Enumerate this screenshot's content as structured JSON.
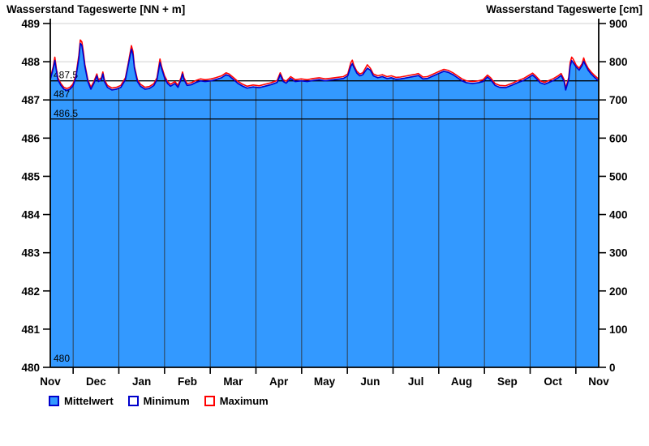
{
  "chart_data": {
    "type": "area",
    "title_left": "Wasserstand Tageswerte [NN + m]",
    "title_right": "Wasserstand Tageswerte [cm]",
    "x_axis": {
      "labels": [
        "Nov",
        "Dec",
        "Jan",
        "Feb",
        "Mar",
        "Apr",
        "May",
        "Jun",
        "Jul",
        "Aug",
        "Sep",
        "Oct",
        "Nov"
      ],
      "range_days": [
        0,
        365
      ],
      "tick_position": "mid-month"
    },
    "y_left": {
      "unit": "NN + m",
      "range": [
        480,
        489
      ],
      "ticks": [
        489,
        488,
        487,
        486,
        485,
        484,
        483,
        482,
        481,
        480
      ]
    },
    "y_right": {
      "unit": "cm",
      "range": [
        0,
        900
      ],
      "ticks": [
        900,
        800,
        700,
        600,
        500,
        400,
        300,
        200,
        100,
        0
      ]
    },
    "reference_lines": [
      {
        "value": 487.5,
        "label": "487.5",
        "line": true
      },
      {
        "value": 487.0,
        "label": "487",
        "line": true
      },
      {
        "value": 486.5,
        "label": "486.5",
        "line": true
      },
      {
        "value": 480.0,
        "label": "480",
        "line": false
      }
    ],
    "series": {
      "days": [
        0,
        1,
        2,
        3,
        4,
        5,
        7,
        9,
        11,
        13,
        15,
        17,
        19,
        20,
        21,
        22,
        23,
        25,
        27,
        29,
        31,
        32,
        34,
        35,
        36,
        38,
        41,
        44,
        47,
        50,
        52,
        54,
        55,
        56,
        58,
        60,
        63,
        66,
        69,
        71,
        73,
        74,
        76,
        78,
        80,
        83,
        85,
        87,
        88,
        89,
        91,
        94,
        97,
        100,
        103,
        107,
        110,
        114,
        117,
        119,
        122,
        125,
        128,
        131,
        135,
        139,
        143,
        147,
        151,
        153,
        155,
        157,
        160,
        163,
        167,
        171,
        175,
        179,
        183,
        187,
        191,
        195,
        198,
        200,
        201,
        202,
        204,
        206,
        208,
        211,
        213,
        215,
        218,
        221,
        224,
        227,
        230,
        233,
        236,
        240,
        243,
        245,
        248,
        251,
        255,
        259,
        262,
        265,
        268,
        271,
        274,
        277,
        281,
        285,
        288,
        291,
        293,
        296,
        299,
        303,
        307,
        311,
        315,
        318,
        321,
        323,
        326,
        329,
        332,
        335,
        338,
        340,
        342,
        343,
        345,
        346,
        347,
        348,
        350,
        352,
        354,
        355,
        356,
        358,
        360,
        362,
        364,
        365
      ],
      "mittelwert": [
        487.55,
        487.7,
        487.85,
        488.05,
        487.8,
        487.55,
        487.4,
        487.3,
        487.27,
        487.3,
        487.38,
        487.6,
        488.1,
        488.5,
        488.45,
        488.2,
        487.9,
        487.5,
        487.3,
        487.45,
        487.65,
        487.5,
        487.55,
        487.7,
        487.5,
        487.35,
        487.28,
        487.3,
        487.35,
        487.55,
        487.95,
        488.35,
        488.2,
        487.85,
        487.5,
        487.38,
        487.3,
        487.32,
        487.4,
        487.55,
        488.0,
        487.85,
        487.6,
        487.45,
        487.38,
        487.45,
        487.35,
        487.55,
        487.7,
        487.55,
        487.4,
        487.42,
        487.48,
        487.52,
        487.5,
        487.52,
        487.55,
        487.6,
        487.68,
        487.65,
        487.55,
        487.45,
        487.38,
        487.33,
        487.36,
        487.34,
        487.38,
        487.42,
        487.48,
        487.68,
        487.5,
        487.46,
        487.58,
        487.5,
        487.52,
        487.5,
        487.53,
        487.55,
        487.52,
        487.54,
        487.56,
        487.58,
        487.65,
        487.9,
        487.97,
        487.88,
        487.72,
        487.65,
        487.68,
        487.85,
        487.8,
        487.65,
        487.6,
        487.63,
        487.58,
        487.6,
        487.56,
        487.57,
        487.59,
        487.62,
        487.64,
        487.66,
        487.57,
        487.58,
        487.65,
        487.72,
        487.77,
        487.74,
        487.68,
        487.6,
        487.52,
        487.47,
        487.45,
        487.47,
        487.5,
        487.62,
        487.55,
        487.4,
        487.35,
        487.34,
        487.4,
        487.47,
        487.53,
        487.6,
        487.67,
        487.6,
        487.47,
        487.43,
        487.48,
        487.53,
        487.6,
        487.66,
        487.5,
        487.28,
        487.55,
        487.9,
        488.05,
        488.0,
        487.88,
        487.8,
        487.92,
        488.03,
        487.95,
        487.8,
        487.7,
        487.62,
        487.55,
        487.52
      ],
      "maximum": [
        487.58,
        487.73,
        487.88,
        488.12,
        487.83,
        487.58,
        487.43,
        487.33,
        487.3,
        487.33,
        487.41,
        487.63,
        488.17,
        488.57,
        488.52,
        488.27,
        487.93,
        487.53,
        487.33,
        487.48,
        487.68,
        487.53,
        487.58,
        487.73,
        487.53,
        487.38,
        487.31,
        487.33,
        487.38,
        487.58,
        487.98,
        488.42,
        488.27,
        487.88,
        487.53,
        487.41,
        487.33,
        487.35,
        487.43,
        487.58,
        488.07,
        487.88,
        487.63,
        487.48,
        487.41,
        487.48,
        487.38,
        487.58,
        487.73,
        487.58,
        487.43,
        487.45,
        487.51,
        487.55,
        487.53,
        487.55,
        487.58,
        487.63,
        487.71,
        487.68,
        487.58,
        487.48,
        487.41,
        487.36,
        487.39,
        487.37,
        487.41,
        487.45,
        487.51,
        487.71,
        487.53,
        487.49,
        487.61,
        487.53,
        487.55,
        487.53,
        487.56,
        487.58,
        487.55,
        487.57,
        487.59,
        487.61,
        487.68,
        487.97,
        488.04,
        487.91,
        487.75,
        487.68,
        487.71,
        487.92,
        487.83,
        487.68,
        487.63,
        487.66,
        487.61,
        487.63,
        487.59,
        487.6,
        487.62,
        487.65,
        487.67,
        487.69,
        487.6,
        487.61,
        487.68,
        487.75,
        487.8,
        487.77,
        487.71,
        487.63,
        487.55,
        487.5,
        487.48,
        487.5,
        487.53,
        487.65,
        487.58,
        487.43,
        487.38,
        487.37,
        487.43,
        487.5,
        487.56,
        487.63,
        487.7,
        487.63,
        487.5,
        487.46,
        487.51,
        487.56,
        487.63,
        487.69,
        487.53,
        487.31,
        487.58,
        487.97,
        488.12,
        488.07,
        487.91,
        487.83,
        487.95,
        488.1,
        487.98,
        487.83,
        487.73,
        487.65,
        487.58,
        487.55
      ],
      "minimum": [
        487.53,
        487.68,
        487.83,
        488.03,
        487.78,
        487.53,
        487.38,
        487.28,
        487.25,
        487.28,
        487.36,
        487.58,
        488.08,
        488.48,
        488.43,
        488.18,
        487.88,
        487.48,
        487.28,
        487.43,
        487.63,
        487.48,
        487.53,
        487.68,
        487.48,
        487.33,
        487.26,
        487.28,
        487.33,
        487.53,
        487.93,
        488.33,
        488.18,
        487.83,
        487.48,
        487.36,
        487.28,
        487.3,
        487.38,
        487.53,
        487.98,
        487.83,
        487.58,
        487.43,
        487.36,
        487.43,
        487.33,
        487.53,
        487.68,
        487.53,
        487.38,
        487.4,
        487.46,
        487.5,
        487.48,
        487.5,
        487.53,
        487.58,
        487.66,
        487.63,
        487.53,
        487.43,
        487.36,
        487.31,
        487.34,
        487.32,
        487.36,
        487.4,
        487.46,
        487.66,
        487.48,
        487.44,
        487.56,
        487.48,
        487.5,
        487.48,
        487.51,
        487.53,
        487.5,
        487.52,
        487.54,
        487.56,
        487.63,
        487.88,
        487.95,
        487.86,
        487.7,
        487.63,
        487.66,
        487.83,
        487.78,
        487.63,
        487.58,
        487.61,
        487.56,
        487.58,
        487.54,
        487.55,
        487.57,
        487.6,
        487.62,
        487.64,
        487.55,
        487.56,
        487.63,
        487.7,
        487.75,
        487.72,
        487.66,
        487.58,
        487.5,
        487.45,
        487.43,
        487.45,
        487.48,
        487.6,
        487.53,
        487.38,
        487.33,
        487.32,
        487.38,
        487.45,
        487.51,
        487.58,
        487.65,
        487.58,
        487.45,
        487.41,
        487.46,
        487.51,
        487.58,
        487.64,
        487.48,
        487.26,
        487.53,
        487.88,
        488.03,
        487.98,
        487.86,
        487.78,
        487.9,
        488.01,
        487.93,
        487.78,
        487.68,
        487.6,
        487.53,
        487.5
      ]
    },
    "legend": [
      {
        "label": "Mittelwert",
        "swatch_fill": "#3399FF",
        "swatch_border": "#0000CC"
      },
      {
        "label": "Minimum",
        "swatch_fill": "#FFFFFF",
        "swatch_border": "#0000CC"
      },
      {
        "label": "Maximum",
        "swatch_fill": "#FFFFFF",
        "swatch_border": "#FF0000"
      }
    ],
    "colors": {
      "area_fill": "#3399FF",
      "minimum_line": "#0000CC",
      "maximum_line": "#FF0000",
      "reference_line": "#000000",
      "grid_horizontal": "#D0D0D0",
      "grid_vertical": "#2E2E2E",
      "axis": "#000000"
    }
  }
}
